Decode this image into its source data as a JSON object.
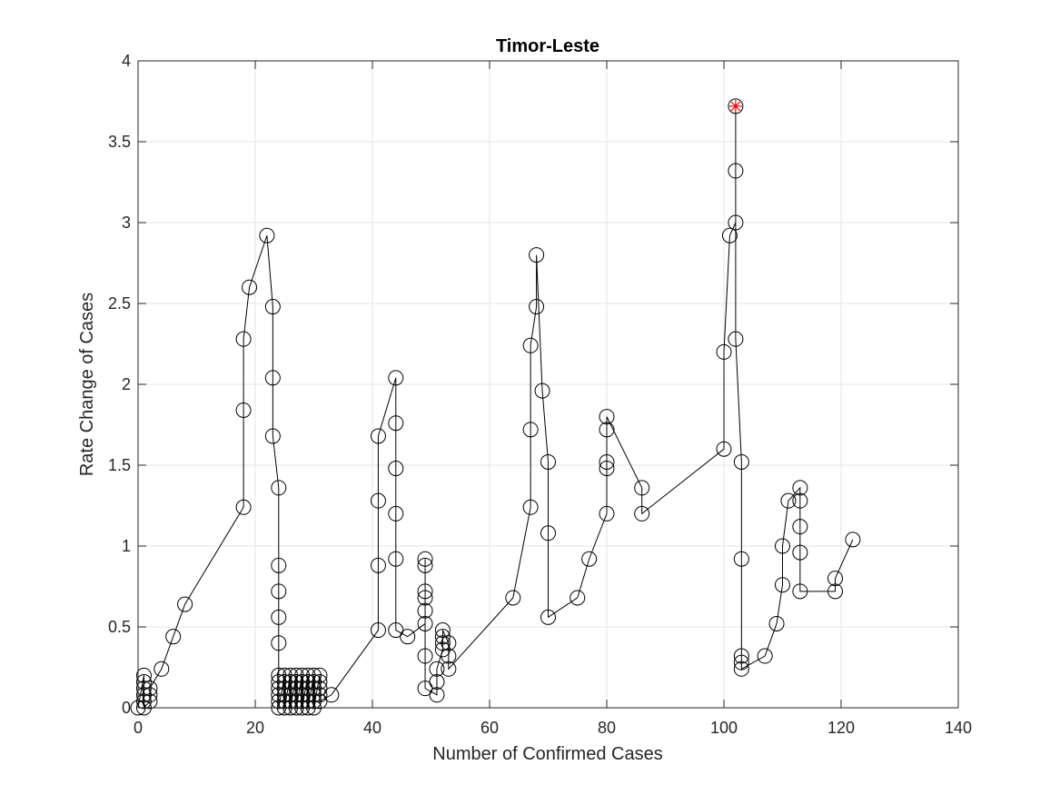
{
  "chart_data": {
    "type": "line",
    "title": "Timor-Leste",
    "xlabel": "Number of Confirmed Cases",
    "ylabel": "Rate Change of Cases",
    "xlim": [
      0,
      140
    ],
    "ylim": [
      0,
      4
    ],
    "xticks": [
      0,
      20,
      40,
      60,
      80,
      100,
      120,
      140
    ],
    "xtick_labels": [
      "0",
      "20",
      "40",
      "60",
      "80",
      "100",
      "120",
      "140"
    ],
    "yticks": [
      0,
      0.5,
      1,
      1.5,
      2,
      2.5,
      3,
      3.5,
      4
    ],
    "ytick_labels": [
      "0",
      "0.5",
      "1",
      "1.5",
      "2",
      "2.5",
      "3",
      "3.5",
      "4"
    ],
    "grid": true,
    "colors": {
      "line": "#000000",
      "marker": "#000000",
      "highlight": "#ff0000",
      "grid": "#e6e6e6",
      "axis": "#262626"
    },
    "series": [
      {
        "marker": "circle",
        "points": [
          [
            0,
            0
          ],
          [
            1,
            0.2
          ],
          [
            1,
            0.16
          ],
          [
            1,
            0.12
          ],
          [
            1,
            0.08
          ],
          [
            1,
            0.04
          ],
          [
            1,
            0
          ],
          [
            2,
            0.04
          ],
          [
            2,
            0.08
          ],
          [
            2,
            0.12
          ],
          [
            4,
            0.24
          ],
          [
            6,
            0.44
          ],
          [
            8,
            0.64
          ],
          [
            18,
            1.24
          ],
          [
            18,
            1.84
          ],
          [
            18,
            2.28
          ],
          [
            19,
            2.6
          ],
          [
            22,
            2.92
          ],
          [
            23,
            2.48
          ],
          [
            23,
            2.04
          ],
          [
            23,
            1.68
          ],
          [
            24,
            1.36
          ],
          [
            24,
            0.88
          ],
          [
            24,
            0.72
          ],
          [
            24,
            0.56
          ],
          [
            24,
            0.4
          ],
          [
            24,
            0.2
          ],
          [
            24,
            0.16
          ],
          [
            24,
            0.12
          ],
          [
            24,
            0.08
          ],
          [
            24,
            0.04
          ],
          [
            24,
            0
          ],
          [
            25,
            0.2
          ],
          [
            25,
            0.16
          ],
          [
            25,
            0.12
          ],
          [
            25,
            0.08
          ],
          [
            25,
            0.04
          ],
          [
            25,
            0
          ],
          [
            26,
            0.2
          ],
          [
            26,
            0.16
          ],
          [
            26,
            0.12
          ],
          [
            26,
            0.08
          ],
          [
            26,
            0.04
          ],
          [
            26,
            0
          ],
          [
            27,
            0.2
          ],
          [
            27,
            0.16
          ],
          [
            27,
            0.12
          ],
          [
            27,
            0.08
          ],
          [
            27,
            0.04
          ],
          [
            27,
            0
          ],
          [
            28,
            0.2
          ],
          [
            28,
            0.16
          ],
          [
            28,
            0.12
          ],
          [
            28,
            0.08
          ],
          [
            28,
            0.04
          ],
          [
            28,
            0
          ],
          [
            29,
            0.2
          ],
          [
            29,
            0.16
          ],
          [
            29,
            0.12
          ],
          [
            29,
            0.08
          ],
          [
            29,
            0.04
          ],
          [
            29,
            0
          ],
          [
            30,
            0.2
          ],
          [
            30,
            0.16
          ],
          [
            30,
            0.12
          ],
          [
            30,
            0.08
          ],
          [
            30,
            0.04
          ],
          [
            30,
            0
          ],
          [
            31,
            0.2
          ],
          [
            31,
            0.16
          ],
          [
            31,
            0.12
          ],
          [
            31,
            0.08
          ],
          [
            31,
            0.04
          ],
          [
            33,
            0.08
          ],
          [
            41,
            0.48
          ],
          [
            41,
            0.88
          ],
          [
            41,
            1.28
          ],
          [
            41,
            1.68
          ],
          [
            44,
            2.04
          ],
          [
            44,
            1.76
          ],
          [
            44,
            1.48
          ],
          [
            44,
            1.2
          ],
          [
            44,
            0.92
          ],
          [
            44,
            0.48
          ],
          [
            46,
            0.44
          ],
          [
            49,
            0.52
          ],
          [
            49,
            0.6
          ],
          [
            49,
            0.68
          ],
          [
            49,
            0.72
          ],
          [
            49,
            0.88
          ],
          [
            49,
            0.92
          ],
          [
            49,
            0.32
          ],
          [
            49,
            0.12
          ],
          [
            51,
            0.08
          ],
          [
            51,
            0.16
          ],
          [
            51,
            0.24
          ],
          [
            52,
            0.36
          ],
          [
            52,
            0.4
          ],
          [
            52,
            0.44
          ],
          [
            52,
            0.48
          ],
          [
            53,
            0.4
          ],
          [
            53,
            0.32
          ],
          [
            53,
            0.24
          ],
          [
            64,
            0.68
          ],
          [
            67,
            1.24
          ],
          [
            67,
            1.72
          ],
          [
            67,
            2.24
          ],
          [
            68,
            2.48
          ],
          [
            68,
            2.8
          ],
          [
            69,
            1.96
          ],
          [
            70,
            1.52
          ],
          [
            70,
            1.08
          ],
          [
            70,
            0.56
          ],
          [
            75,
            0.68
          ],
          [
            77,
            0.92
          ],
          [
            80,
            1.2
          ],
          [
            80,
            1.48
          ],
          [
            80,
            1.52
          ],
          [
            80,
            1.72
          ],
          [
            80,
            1.8
          ],
          [
            86,
            1.36
          ],
          [
            86,
            1.2
          ],
          [
            100,
            1.6
          ],
          [
            100,
            2.2
          ],
          [
            101,
            2.92
          ],
          [
            102,
            3.0
          ],
          [
            102,
            3.32
          ],
          [
            102,
            3.72
          ],
          [
            102,
            2.28
          ],
          [
            103,
            1.52
          ],
          [
            103,
            0.92
          ],
          [
            103,
            0.32
          ],
          [
            103,
            0.28
          ],
          [
            103,
            0.24
          ],
          [
            107,
            0.32
          ],
          [
            109,
            0.52
          ],
          [
            110,
            0.76
          ],
          [
            110,
            1.0
          ],
          [
            111,
            1.28
          ],
          [
            113,
            1.36
          ],
          [
            113,
            1.28
          ],
          [
            113,
            1.12
          ],
          [
            113,
            0.96
          ],
          [
            113,
            0.72
          ],
          [
            119,
            0.72
          ],
          [
            119,
            0.8
          ],
          [
            122,
            1.04
          ]
        ]
      }
    ],
    "highlight_point": [
      102,
      3.72
    ]
  }
}
